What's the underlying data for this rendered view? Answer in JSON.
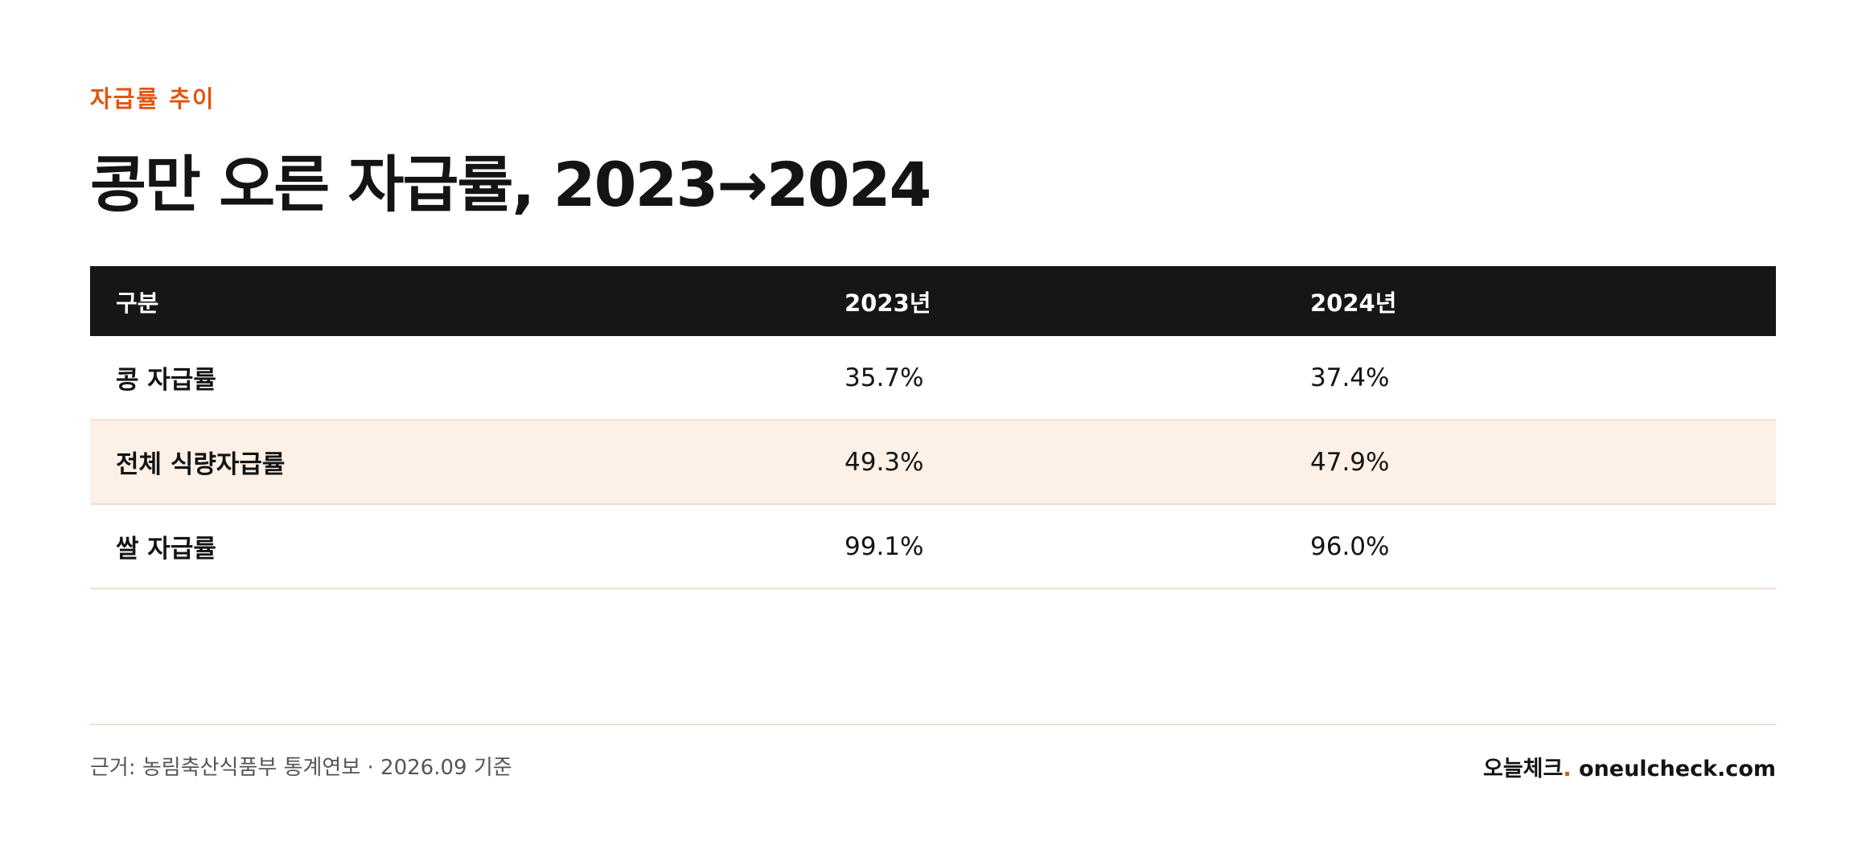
{
  "header": {
    "eyebrow": "자급률 추이",
    "title": "콩만 오른 자급률, 2023→2024"
  },
  "table": {
    "columns": [
      "구분",
      "2023년",
      "2024년"
    ],
    "rows": [
      {
        "label": "콩 자급률",
        "y2023": "35.7%",
        "y2024": "37.4%",
        "highlight": false
      },
      {
        "label": "전체 식량자급률",
        "y2023": "49.3%",
        "y2024": "47.9%",
        "highlight": true
      },
      {
        "label": "쌀 자급률",
        "y2023": "99.1%",
        "y2024": "96.0%",
        "highlight": false
      }
    ]
  },
  "footer": {
    "source": "근거: 농림축산식품부 통계연보 · 2026.09 기준",
    "brand_name": "오늘체크",
    "brand_dot": ".",
    "brand_url": " oneulcheck.com"
  },
  "colors": {
    "accent": "#e0560f",
    "header_bg": "#161616",
    "highlight_row_bg": "#fdf0e7",
    "divider": "#f1ded3"
  }
}
